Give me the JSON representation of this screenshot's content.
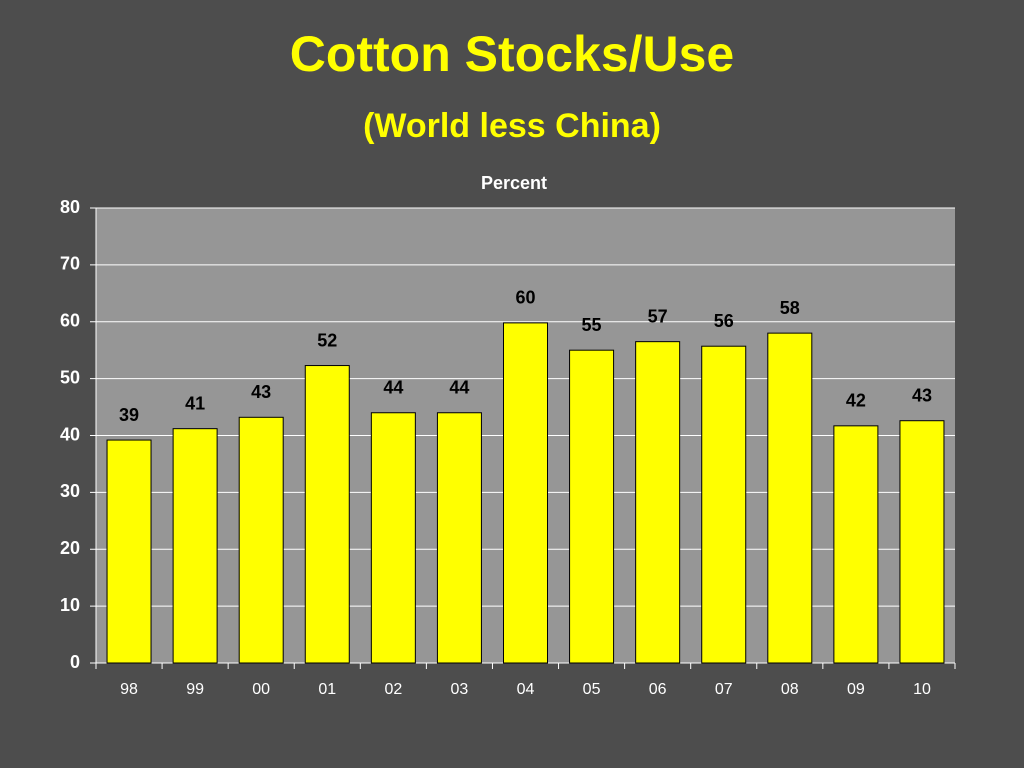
{
  "chart_data": {
    "type": "bar",
    "title": "Cotton Stocks/Use",
    "subtitle": "(World less China)",
    "y_label": "Percent",
    "categories": [
      "98",
      "99",
      "00",
      "01",
      "02",
      "03",
      "04",
      "05",
      "06",
      "07",
      "08",
      "09",
      "10"
    ],
    "values": [
      39.2,
      41.2,
      43.2,
      52.3,
      44,
      44,
      59.8,
      55,
      56.5,
      55.7,
      58,
      41.7,
      42.6
    ],
    "value_labels": [
      "39",
      "41",
      "43",
      "52",
      "44",
      "44",
      "60",
      "55",
      "57",
      "56",
      "58",
      "42",
      "43"
    ],
    "color": "#ffff00",
    "ylim": [
      0,
      80
    ],
    "yticks": [
      0,
      10,
      20,
      30,
      40,
      50,
      60,
      70,
      80
    ],
    "grid": true
  }
}
